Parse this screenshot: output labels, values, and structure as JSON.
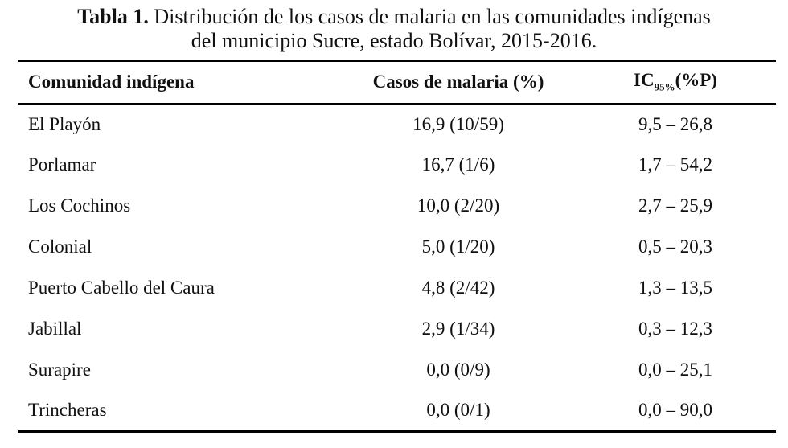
{
  "caption": {
    "label": "Tabla 1.",
    "line1": "Distribución de los casos de malaria en las comunidades indígenas",
    "line2": "del municipio Sucre, estado Bolívar, 2015-2016."
  },
  "table": {
    "header": [
      "Comunidad indígena",
      "Casos de malaria (%)",
      {
        "main": "IC",
        "sub": "95%",
        "tail": "(%P)"
      }
    ],
    "rows": [
      [
        "El Playón",
        "16,9 (10/59)",
        "9,5 – 26,8"
      ],
      [
        "Porlamar",
        "16,7 (1/6)",
        "1,7 – 54,2"
      ],
      [
        "Los Cochinos",
        "10,0 (2/20)",
        "2,7 – 25,9"
      ],
      [
        "Colonial",
        "5,0 (1/20)",
        "0,5 – 20,3"
      ],
      [
        "Puerto Cabello del Caura",
        "4,8 (2/42)",
        "1,3 – 13,5"
      ],
      [
        "Jabillal",
        "2,9 (1/34)",
        "0,3 – 12,3"
      ],
      [
        "Surapire",
        "0,0 (0/9)",
        "0,0 – 25,1"
      ],
      [
        "Trincheras",
        "0,0 (0/1)",
        "0,0 – 90,0"
      ]
    ]
  }
}
